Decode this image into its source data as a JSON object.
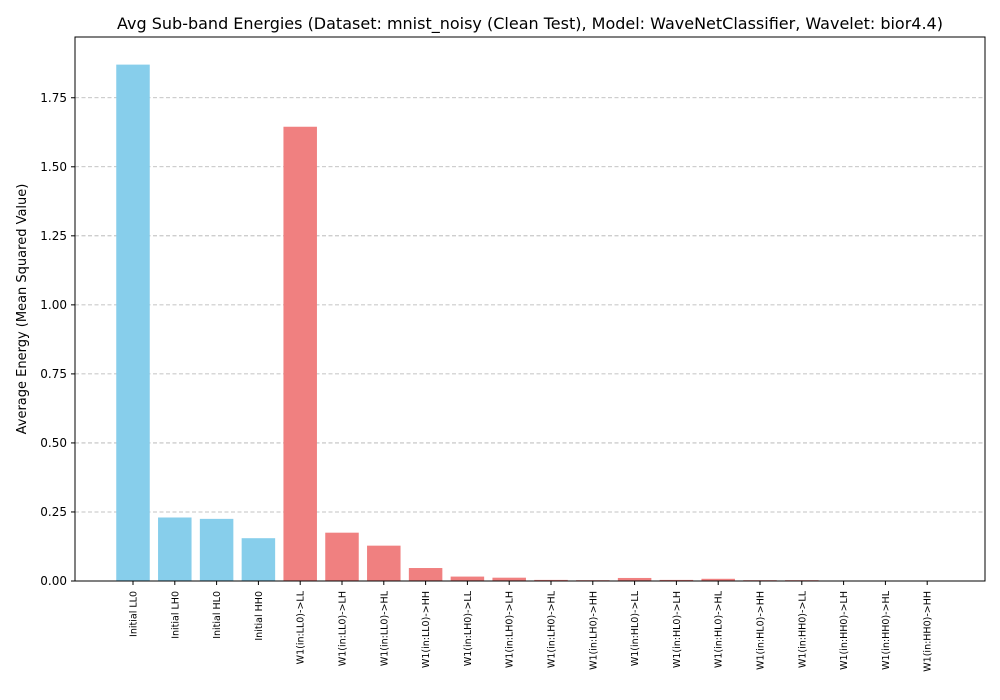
{
  "chart_data": {
    "type": "bar",
    "title": "Avg Sub-band Energies (Dataset: mnist_noisy (Clean Test), Model: WaveNetClassifier, Wavelet: bior4.4)",
    "xlabel": "",
    "ylabel": "Average Energy (Mean Squared Value)",
    "ylim": [
      0,
      1.97
    ],
    "yticks": [
      "0.00",
      "0.25",
      "0.50",
      "0.75",
      "1.00",
      "1.25",
      "1.50",
      "1.75"
    ],
    "grid": "y-dashed",
    "categories": [
      "Initial LL0",
      "Initial LH0",
      "Initial HL0",
      "Initial HH0",
      "W1(in:LL0)->LL",
      "W1(in:LL0)->LH",
      "W1(in:LL0)->HL",
      "W1(in:LL0)->HH",
      "W1(in:LH0)->LL",
      "W1(in:LH0)->LH",
      "W1(in:LH0)->HL",
      "W1(in:LH0)->HH",
      "W1(in:HL0)->LL",
      "W1(in:HL0)->LH",
      "W1(in:HL0)->HL",
      "W1(in:HL0)->HH",
      "W1(in:HH0)->LL",
      "W1(in:HH0)->LH",
      "W1(in:HH0)->HL",
      "W1(in:HH0)->HH"
    ],
    "values": [
      1.87,
      0.23,
      0.225,
      0.155,
      1.645,
      0.175,
      0.128,
      0.047,
      0.016,
      0.012,
      0.004,
      0.003,
      0.011,
      0.004,
      0.008,
      0.003,
      0.003,
      0.001,
      0.0005,
      0.0005
    ],
    "colors": [
      "#87ceeb",
      "#87ceeb",
      "#87ceeb",
      "#87ceeb",
      "#f08080",
      "#f08080",
      "#f08080",
      "#f08080",
      "#f08080",
      "#f08080",
      "#f08080",
      "#f08080",
      "#f08080",
      "#f08080",
      "#f08080",
      "#f08080",
      "#f08080",
      "#f08080",
      "#f08080",
      "#f08080"
    ]
  }
}
